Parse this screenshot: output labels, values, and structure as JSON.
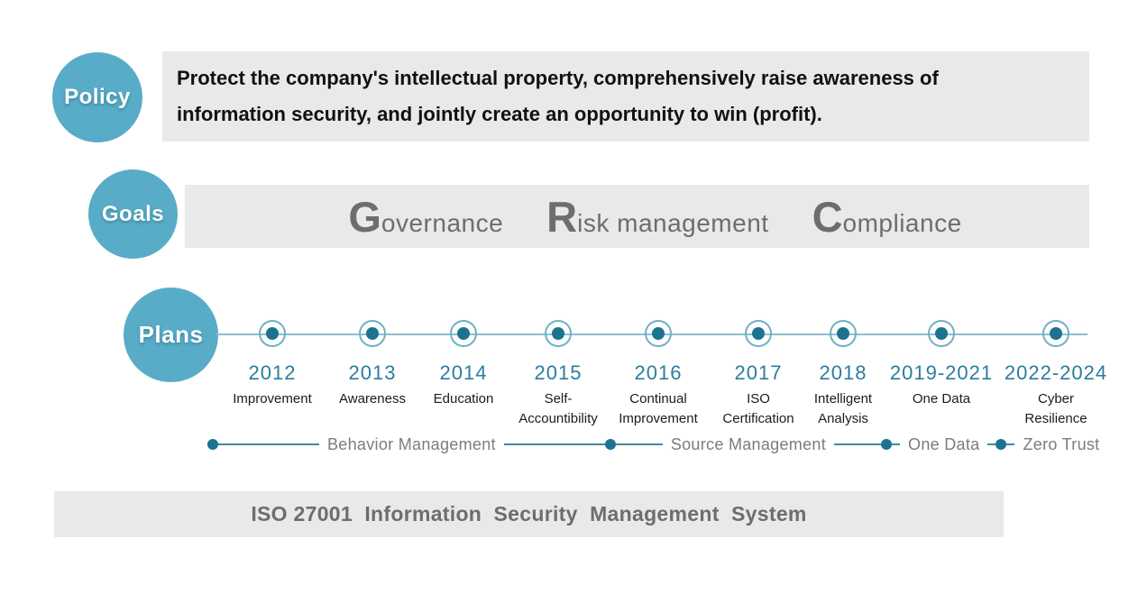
{
  "policy": {
    "label": "Policy",
    "line1": "Protect the company's intellectual property, comprehensively raise awareness of",
    "line2": "information security, and jointly create an opportunity to win (profit)."
  },
  "goals": {
    "label": "Goals",
    "items": [
      {
        "initial": "G",
        "rest": "overnance"
      },
      {
        "initial": "R",
        "rest": "isk management"
      },
      {
        "initial": "C",
        "rest": "ompliance"
      }
    ]
  },
  "plans": {
    "label": "Plans",
    "items": [
      {
        "year": "2012",
        "desc": "Improvement"
      },
      {
        "year": "2013",
        "desc": "Awareness"
      },
      {
        "year": "2014",
        "desc": "Education"
      },
      {
        "year": "2015",
        "desc": "Self-\nAccountibility"
      },
      {
        "year": "2016",
        "desc": "Continual\nImprovement"
      },
      {
        "year": "2017",
        "desc": "ISO\nCertification"
      },
      {
        "year": "2018",
        "desc": "Intelligent\nAnalysis"
      },
      {
        "year": "2019-2021",
        "desc": "One Data"
      },
      {
        "year": "2022-2024",
        "desc": "Cyber\nResilience"
      }
    ]
  },
  "phases": {
    "items": [
      {
        "label": "Behavior Management"
      },
      {
        "label": "Source Management"
      },
      {
        "label": "One Data"
      },
      {
        "label": "Zero Trust"
      }
    ]
  },
  "footer": {
    "text": "ISO 27001  Information  Security  Management  System"
  },
  "colors": {
    "bubble_teal": "#58acc7",
    "dot_teal": "#1b7390",
    "year_teal": "#2a7d9e",
    "bar_gray": "#e9e9e9",
    "text_gray": "#6d6d6d"
  }
}
